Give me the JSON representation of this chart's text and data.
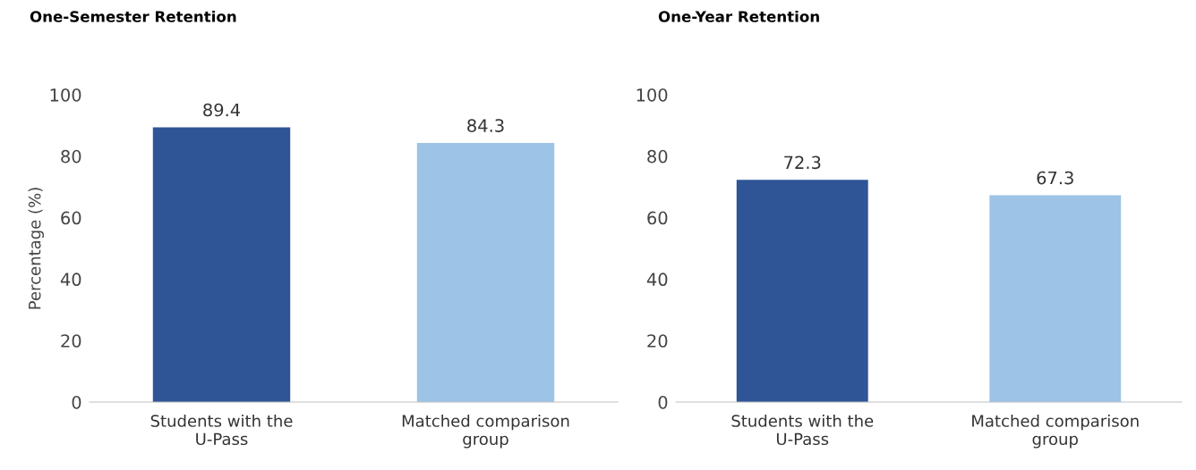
{
  "chart_data": [
    {
      "type": "bar",
      "title": "One-Semester Retention",
      "ylabel": "Percentage (%)",
      "categories": [
        "Students with the\nU-Pass",
        "Matched comparison\ngroup"
      ],
      "values": [
        89.4,
        84.3
      ],
      "colors": [
        "#2f5597",
        "#9dc3e6"
      ],
      "ylim": [
        0,
        100
      ],
      "yticks": [
        0,
        20,
        40,
        60,
        80,
        100
      ],
      "data_labels": true,
      "grid": false,
      "legend": false
    },
    {
      "type": "bar",
      "title": "One-Year Retention",
      "categories": [
        "Students with the\nU-Pass",
        "Matched comparison\ngroup"
      ],
      "values": [
        72.3,
        67.3
      ],
      "colors": [
        "#2f5597",
        "#9dc3e6"
      ],
      "ylim": [
        0,
        100
      ],
      "yticks": [
        0,
        20,
        40,
        60,
        80,
        100
      ],
      "data_labels": true,
      "grid": false,
      "legend": false
    }
  ]
}
